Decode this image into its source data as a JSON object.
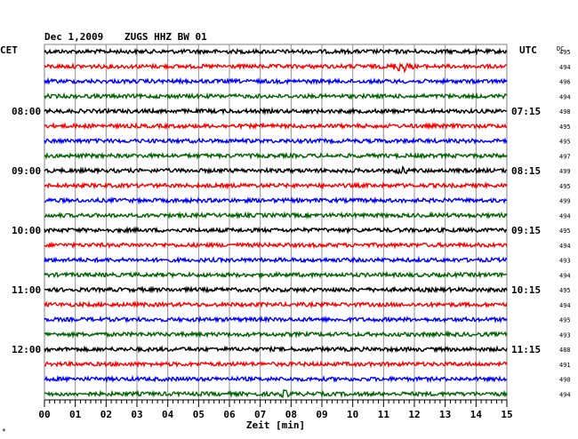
{
  "header": {
    "date": "Dec 1,2009",
    "station": "ZUGS HHZ BW 01",
    "left_timezone": "CET",
    "right_timezone": "UTC",
    "dc_label": "DC"
  },
  "chart_data": {
    "type": "line",
    "title": "Dec 1,2009  ZUGS HHZ BW 01",
    "xlabel": "Zeit [min]",
    "ylabel": "",
    "xlim": [
      0,
      15
    ],
    "x_ticks": [
      "00",
      "01",
      "02",
      "03",
      "04",
      "05",
      "06",
      "07",
      "08",
      "09",
      "10",
      "11",
      "12",
      "13",
      "14",
      "15"
    ],
    "trace_colors": [
      "#000000",
      "#ff0000",
      "#0000ff",
      "#006400"
    ],
    "trace_count": 24,
    "trace_minutes_per_line": 15,
    "hour_labels_cet": [
      {
        "trace_index": 4,
        "label": "08:00"
      },
      {
        "trace_index": 8,
        "label": "09:00"
      },
      {
        "trace_index": 12,
        "label": "10:00"
      },
      {
        "trace_index": 16,
        "label": "11:00"
      },
      {
        "trace_index": 20,
        "label": "12:00"
      }
    ],
    "hour_labels_utc": [
      {
        "trace_index": 4,
        "label": "07:15"
      },
      {
        "trace_index": 8,
        "label": "08:15"
      },
      {
        "trace_index": 12,
        "label": "09:15"
      },
      {
        "trace_index": 16,
        "label": "10:15"
      },
      {
        "trace_index": 20,
        "label": "11:15"
      }
    ],
    "dc_values": [
      495,
      494,
      496,
      494,
      498,
      495,
      495,
      497,
      499,
      495,
      499,
      494,
      495,
      494,
      493,
      494,
      495,
      494,
      495,
      493,
      488,
      491,
      490,
      494
    ],
    "events": [
      {
        "trace_index": 1,
        "minute": 11.6,
        "amplitude": "high"
      },
      {
        "trace_index": 8,
        "minute": 11.6,
        "amplitude": "medium"
      },
      {
        "trace_index": 23,
        "minute": 7.8,
        "amplitude": "medium"
      }
    ],
    "grid": true
  },
  "footer_mark": "*"
}
